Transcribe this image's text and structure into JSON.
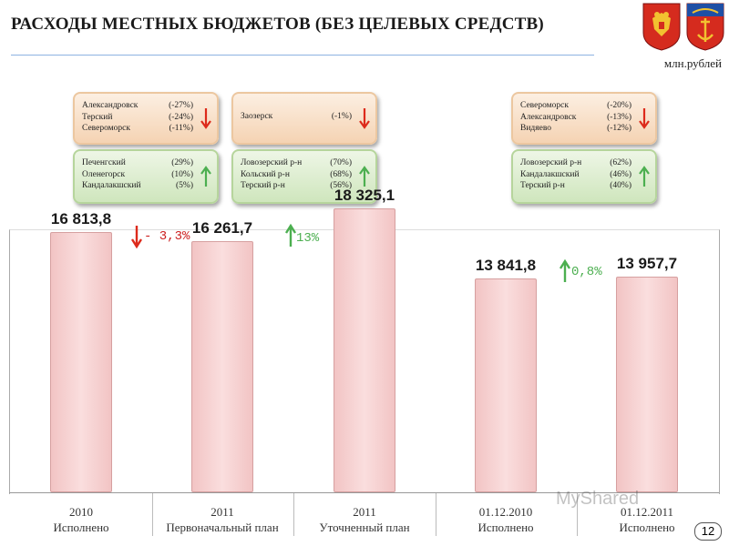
{
  "title": "РАСХОДЫ МЕСТНЫХ БЮДЖЕТОВ (БЕЗ ЦЕЛЕВЫХ СРЕДСТВ)",
  "unit": "млн.рублей",
  "page_number": "12",
  "watermark": "MyShared",
  "boxes": {
    "g1_down": [
      [
        "Александровск",
        "(-27%)"
      ],
      [
        "Терский",
        "(-24%)"
      ],
      [
        "Североморск",
        "(-11%)"
      ]
    ],
    "g1_up": [
      [
        "Печенгский",
        "(29%)"
      ],
      [
        "Оленегорск",
        "(10%)"
      ],
      [
        "Кандалакшский",
        "(5%)"
      ]
    ],
    "g2_down": [
      [
        "Заозерск",
        "(-1%)"
      ]
    ],
    "g2_up": [
      [
        "Ловозерский р-н",
        "(70%)"
      ],
      [
        "Кольский р-н",
        "(68%)"
      ],
      [
        "Терский р-н",
        "(56%)"
      ]
    ],
    "g3_down": [
      [
        "Североморск",
        "(-20%)"
      ],
      [
        "Александровск",
        "(-13%)"
      ],
      [
        "Видяево",
        "(-12%)"
      ]
    ],
    "g3_up": [
      [
        "Ловозерский р-н",
        "(62%)"
      ],
      [
        "Кандалакшский",
        "(46%)"
      ],
      [
        "Терский р-н",
        "(40%)"
      ]
    ]
  },
  "changes": {
    "c1": "- 3,3%",
    "c2": "13%",
    "c3": "0,8%"
  },
  "colors": {
    "down_arrow": "#dd2a1b",
    "up_arrow": "#4caf50",
    "bar_fill": "#f5cfcf"
  },
  "chart_data": {
    "type": "bar",
    "categories": [
      {
        "line1": "2010",
        "line2": "Исполнено"
      },
      {
        "line1": "2011",
        "line2": "Первоначальный план"
      },
      {
        "line1": "2011",
        "line2": "Уточненный план"
      },
      {
        "line1": "01.12.2010",
        "line2": "Исполнено"
      },
      {
        "line1": "01.12.2011",
        "line2": "Исполнено"
      }
    ],
    "values": [
      16813.8,
      16261.7,
      18325.1,
      13841.8,
      13957.7
    ],
    "value_labels": [
      "16 813,8",
      "16 261,7",
      "18 325,1",
      "13 841,8",
      "13 957,7"
    ],
    "ylabel": "млн.рублей",
    "ylim": [
      0,
      20000
    ],
    "grid": false
  }
}
